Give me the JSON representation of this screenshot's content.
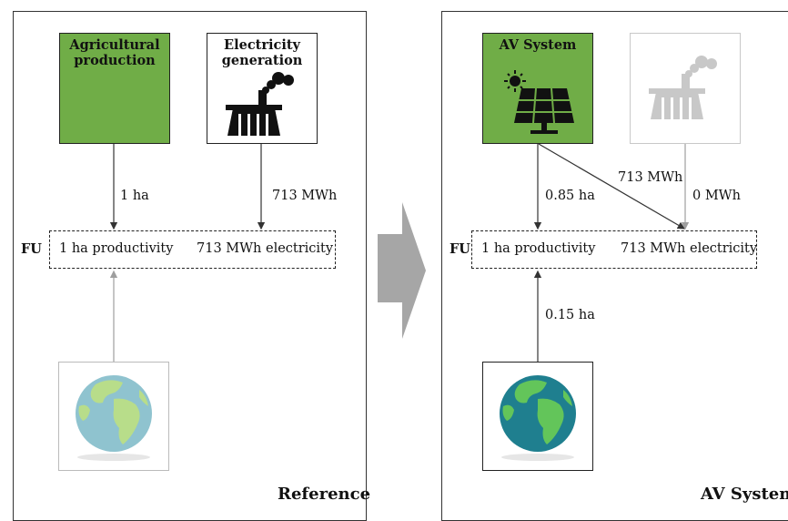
{
  "reference": {
    "box1_label": "Agricultural\nproduction",
    "box2_label": "Electricity\ngeneration",
    "edge_left": "1 ha",
    "edge_right": "713 MWh",
    "fu_label": "FU",
    "fu_productivity": "1 ha productivity",
    "fu_electricity": "713 MWh electricity",
    "footer": "Reference"
  },
  "av": {
    "box1_label": "AV System",
    "edge_left": "0.85 ha",
    "edge_diag": "713 MWh",
    "edge_right": "0 MWh",
    "edge_bottom": "0.15 ha",
    "fu_label": "FU",
    "fu_productivity": "1 ha productivity",
    "fu_electricity": "713 MWh electricity",
    "footer": "AV System"
  },
  "colors": {
    "green": "#70ad47",
    "arrow_gray": "#9e9e9e",
    "faded": "#c8c8c8"
  },
  "icons": {
    "factory": "power-plant-icon",
    "solar": "solar-panel-icon",
    "sun": "sun-icon",
    "globe": "earth-globe-icon",
    "big_arrow": "transition-arrow-icon"
  }
}
